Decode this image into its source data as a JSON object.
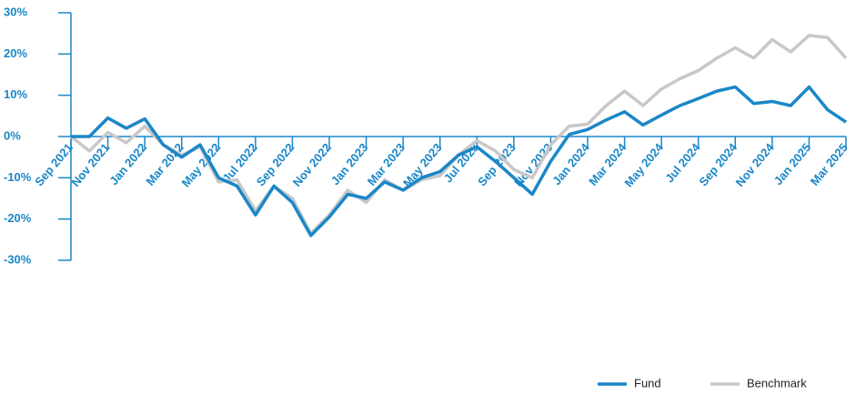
{
  "chart_data": {
    "type": "line",
    "categories": [
      "Sep 2021",
      null,
      "Nov 2021",
      null,
      "Jan 2022",
      null,
      "Mar 2022",
      null,
      "May 2022",
      null,
      "Jul 2022",
      null,
      "Sep 2022",
      null,
      "Nov 2022",
      null,
      "Jan 2023",
      null,
      "Mar 2023",
      null,
      "May 2023",
      null,
      "Jul 2023",
      null,
      "Sep 2023",
      null,
      "Nov 2023",
      null,
      "Jan 2024",
      null,
      "Mar 2024",
      null,
      "May 2024",
      null,
      "Jul 2024",
      null,
      "Sep 2024",
      null,
      "Nov 2024",
      null,
      "Jan 2025",
      null,
      "Mar 2025"
    ],
    "series": [
      {
        "name": "Fund",
        "color": "#1a87c8",
        "values": [
          0,
          0,
          4.5,
          2,
          4.3,
          -2,
          -5,
          -2,
          -10,
          -12,
          -19,
          -12,
          -16,
          -24,
          -19.5,
          -14,
          -15,
          -11,
          -13,
          -10,
          -8.5,
          -4.5,
          -2.5,
          -6,
          -10,
          -14,
          -6,
          0.5,
          1.7,
          4,
          6,
          2.8,
          5.2,
          7.5,
          9.2,
          11,
          12,
          8,
          8.5,
          7.5,
          12,
          6.5,
          3.5
        ]
      },
      {
        "name": "Benchmark",
        "color": "#c8c8c8",
        "values": [
          0,
          -3.5,
          1,
          -1.5,
          2.5,
          -2,
          -4.5,
          -2.5,
          -11,
          -10.5,
          -18,
          -12,
          -15,
          -23.5,
          -19,
          -13,
          -16,
          -10.5,
          -13,
          -10.5,
          -9.5,
          -4.5,
          -1,
          -3.5,
          -8,
          -10,
          -2,
          2.5,
          3,
          7.5,
          11,
          7.5,
          11.5,
          14,
          16,
          19,
          21.5,
          19,
          23.5,
          20.5,
          24.5,
          24,
          19
        ]
      }
    ],
    "ylim": [
      -30,
      30
    ],
    "yticks": [
      {
        "value": -30,
        "label": "-30%"
      },
      {
        "value": -20,
        "label": "-20%"
      },
      {
        "value": -10,
        "label": "-10%"
      },
      {
        "value": 0,
        "label": "0%"
      },
      {
        "value": 10,
        "label": "10%"
      },
      {
        "value": 20,
        "label": "20%"
      },
      {
        "value": 30,
        "label": "30%"
      }
    ],
    "legend": "bottom-right"
  }
}
